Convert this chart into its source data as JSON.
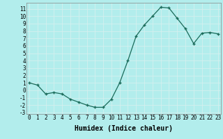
{
  "x": [
    0,
    1,
    2,
    3,
    4,
    5,
    6,
    7,
    8,
    9,
    10,
    11,
    12,
    13,
    14,
    15,
    16,
    17,
    18,
    19,
    20,
    21,
    22,
    23
  ],
  "y": [
    1.0,
    0.7,
    -0.5,
    -0.3,
    -0.5,
    -1.2,
    -1.6,
    -2.0,
    -2.3,
    -2.3,
    -1.2,
    1.0,
    4.0,
    7.3,
    8.8,
    10.0,
    11.2,
    11.1,
    9.7,
    8.3,
    6.3,
    7.7,
    7.8,
    7.6
  ],
  "ylim": [
    -3.2,
    11.8
  ],
  "xlim": [
    -0.3,
    23.3
  ],
  "yticks": [
    11,
    10,
    9,
    8,
    7,
    6,
    5,
    4,
    3,
    2,
    1,
    0,
    -1,
    -2,
    -3
  ],
  "xticks": [
    0,
    1,
    2,
    3,
    4,
    5,
    6,
    7,
    8,
    9,
    10,
    11,
    12,
    13,
    14,
    15,
    16,
    17,
    18,
    19,
    20,
    21,
    22,
    23
  ],
  "xlabel": "Humidex (Indice chaleur)",
  "line_color": "#1a6b5a",
  "marker_color": "#1a6b5a",
  "bg_color": "#b2edec",
  "grid_color": "#d4f0ef",
  "tick_label_fontsize": 5.5,
  "xlabel_fontsize": 7.0
}
